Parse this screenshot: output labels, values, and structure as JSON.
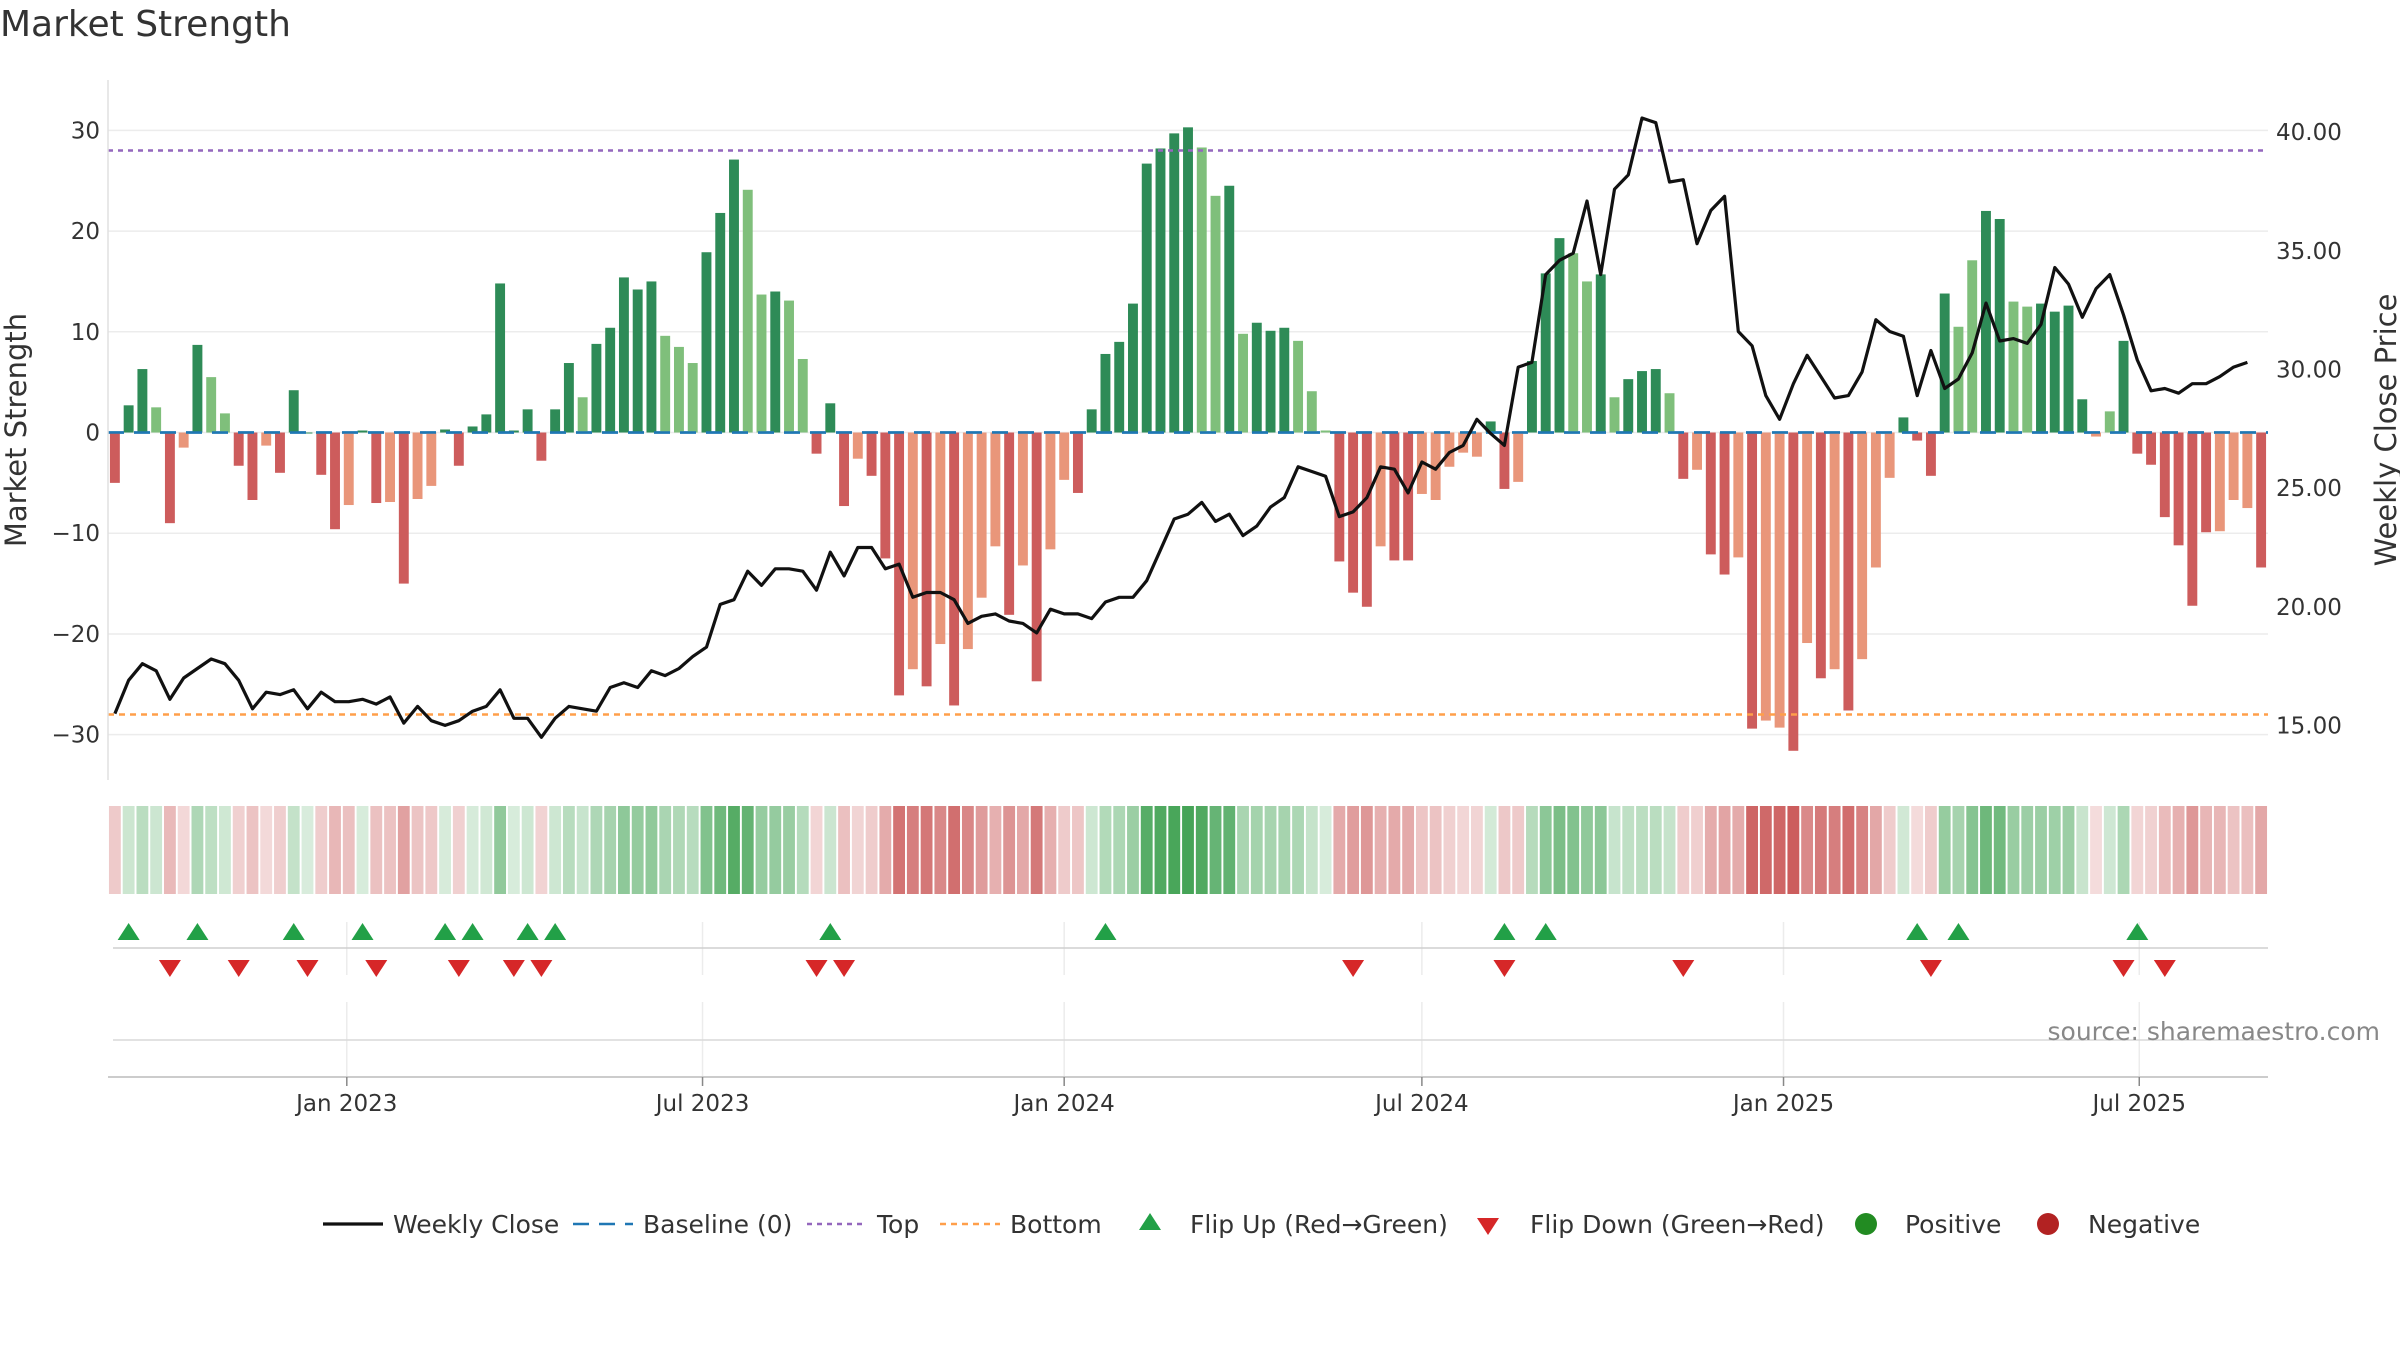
{
  "title": "Market Strength",
  "source": "source: sharemaestro.com",
  "colors": {
    "strong_green": "#2e8b57",
    "light_green": "#7fbf7b",
    "strong_red": "#cd5c5c",
    "light_red": "#e9967a",
    "price_line": "#111111",
    "baseline": "#1f77b4",
    "top": "#9467bd",
    "bottom": "#ff9f4a",
    "flip_up": "#22a047",
    "flip_down": "#d62728",
    "positive": "#228b22",
    "negative": "#b22222"
  },
  "chart_data": {
    "type": "bar+line",
    "start_date": "2022-09-05",
    "interval_days": 7,
    "left_axis": {
      "label": "Market Strength",
      "ylim": [
        -34.5,
        35
      ],
      "ticks": [
        30,
        20,
        10,
        0,
        -10,
        -20,
        -30
      ],
      "tick_labels": [
        "30",
        "20",
        "10",
        "0",
        "−10",
        "−20",
        "−30"
      ]
    },
    "right_axis": {
      "label": "Weekly Close Price",
      "ylim": [
        12.7,
        42.2
      ],
      "ticks": [
        40,
        35,
        30,
        25,
        20,
        15
      ],
      "tick_labels": [
        "40.00",
        "35.00",
        "30.00",
        "25.00",
        "20.00",
        "15.00"
      ]
    },
    "x_axis": {
      "tick_dates": [
        "2023-01-01",
        "2023-07-01",
        "2024-01-01",
        "2024-07-01",
        "2025-01-01",
        "2025-07-01"
      ],
      "tick_labels": [
        "Jan 2023",
        "Jul 2023",
        "Jan 2024",
        "Jul 2024",
        "Jan 2025",
        "Jul 2025"
      ]
    },
    "top_level": 28,
    "bottom_level": -28,
    "baseline": 0,
    "strength": [
      -5,
      2.7,
      6.3,
      2.5,
      -9,
      -1.5,
      8.7,
      5.5,
      1.9,
      -3.3,
      -6.7,
      -1.3,
      -4,
      4.2,
      0,
      -4.2,
      -9.6,
      -7.2,
      0.2,
      -7,
      -6.9,
      -15,
      -6.6,
      -5.3,
      0.3,
      -3.3,
      0.6,
      1.8,
      14.8,
      0.2,
      2.3,
      -2.8,
      2.3,
      6.9,
      3.5,
      8.8,
      10.4,
      15.4,
      14.2,
      15,
      9.6,
      8.5,
      6.9,
      17.9,
      21.8,
      27.1,
      24.1,
      13.7,
      14,
      13.1,
      7.3,
      -2.1,
      2.9,
      -7.3,
      -2.6,
      -4.3,
      -12.5,
      -26.1,
      -23.5,
      -25.2,
      -21,
      -27.1,
      -21.5,
      -16.4,
      -11.3,
      -18.1,
      -13.2,
      -24.7,
      -11.6,
      -4.7,
      -6,
      2.3,
      7.8,
      9,
      12.8,
      26.7,
      28.2,
      29.7,
      30.3,
      28.3,
      23.5,
      24.5,
      9.8,
      10.9,
      10.1,
      10.4,
      9.1,
      4.1,
      0.2,
      -12.8,
      -15.9,
      -17.3,
      -11.3,
      -12.7,
      -12.7,
      -6.1,
      -6.7,
      -3.4,
      -2,
      -2.4,
      1.1,
      -5.6,
      -4.9,
      7.1,
      15.8,
      19.3,
      17.8,
      15,
      15.7,
      3.5,
      5.3,
      6.1,
      6.3,
      3.9,
      -4.6,
      -3.7,
      -12.1,
      -14.1,
      -12.4,
      -29.4,
      -28.6,
      -29.3,
      -31.6,
      -20.9,
      -24.4,
      -23.5,
      -27.6,
      -22.5,
      -13.4,
      -4.5,
      1.5,
      -0.8,
      -4.3,
      13.8,
      10.5,
      17.1,
      22,
      21.2,
      13,
      12.5,
      12.8,
      12,
      12.6,
      3.3,
      -0.4,
      2.1,
      9.1,
      -2.1,
      -3.2,
      -8.4,
      -11.2,
      -17.2,
      -9.9,
      -9.8,
      -6.7,
      -7.5,
      -13.4
    ],
    "tone": [
      1,
      1,
      1,
      0,
      1,
      0,
      1,
      0,
      0,
      1,
      1,
      0,
      1,
      1,
      1,
      1,
      1,
      0,
      1,
      1,
      0,
      1,
      0,
      0,
      1,
      1,
      1,
      1,
      1,
      1,
      1,
      1,
      1,
      1,
      0,
      1,
      1,
      1,
      1,
      1,
      0,
      0,
      0,
      1,
      1,
      1,
      0,
      0,
      1,
      0,
      0,
      1,
      1,
      1,
      0,
      1,
      1,
      1,
      0,
      1,
      0,
      1,
      0,
      0,
      0,
      1,
      0,
      1,
      0,
      0,
      1,
      1,
      1,
      1,
      1,
      1,
      1,
      1,
      1,
      0,
      0,
      1,
      0,
      1,
      1,
      1,
      0,
      0,
      0,
      1,
      1,
      1,
      0,
      1,
      1,
      0,
      0,
      0,
      0,
      0,
      1,
      1,
      0,
      1,
      1,
      1,
      0,
      0,
      1,
      0,
      1,
      1,
      1,
      0,
      1,
      0,
      1,
      1,
      0,
      1,
      0,
      0,
      1,
      0,
      1,
      0,
      1,
      0,
      0,
      0,
      1,
      1,
      1,
      1,
      0,
      0,
      1,
      1,
      0,
      0,
      1,
      1,
      1,
      1,
      0,
      0,
      1,
      1,
      1,
      1,
      1,
      1,
      1,
      0,
      0,
      0,
      1,
      1
    ],
    "close": [
      15.5,
      16.9,
      17.6,
      17.3,
      16.1,
      17,
      17.4,
      17.8,
      17.6,
      16.9,
      15.7,
      16.4,
      16.3,
      16.5,
      15.7,
      16.4,
      16,
      16,
      16.1,
      15.9,
      16.2,
      15.1,
      15.8,
      15.2,
      15,
      15.2,
      15.6,
      15.8,
      16.5,
      15.3,
      15.3,
      14.5,
      15.3,
      15.8,
      15.7,
      15.6,
      16.6,
      16.8,
      16.6,
      17.3,
      17.1,
      17.4,
      17.9,
      18.3,
      20.1,
      20.3,
      21.5,
      20.9,
      21.6,
      21.6,
      21.5,
      20.7,
      22.3,
      21.3,
      22.5,
      22.5,
      21.6,
      21.8,
      20.4,
      20.6,
      20.6,
      20.3,
      19.3,
      19.6,
      19.7,
      19.4,
      19.3,
      18.9,
      19.9,
      19.7,
      19.7,
      19.5,
      20.2,
      20.4,
      20.4,
      21.1,
      22.4,
      23.7,
      23.9,
      24.4,
      23.6,
      23.9,
      23,
      23.4,
      24.2,
      24.6,
      25.9,
      25.7,
      25.5,
      23.8,
      24,
      24.6,
      25.9,
      25.8,
      24.8,
      26.1,
      25.8,
      26.5,
      26.8,
      27.9,
      27.3,
      26.8,
      30.1,
      30.3,
      34,
      34.6,
      34.9,
      37.1,
      34,
      37.6,
      38.2,
      40.6,
      40.4,
      37.9,
      38,
      35.3,
      36.7,
      37.3,
      31.6,
      31,
      28.9,
      27.9,
      29.4,
      30.6,
      29.7,
      28.8,
      28.9,
      29.9,
      32.1,
      31.6,
      31.4,
      28.9,
      30.8,
      29.2,
      29.6,
      30.7,
      32.8,
      31.2,
      31.3,
      31.1,
      31.9,
      34.3,
      33.6,
      32.2,
      33.4,
      34,
      32.3,
      30.4,
      29.1,
      29.2,
      29,
      29.4,
      29.4,
      29.7,
      30.1,
      30.3
    ],
    "flip_up_indices": [
      1,
      6,
      13,
      18,
      24,
      26,
      30,
      32,
      52,
      72,
      101,
      104,
      131,
      134,
      147
    ],
    "flip_down_indices": [
      4,
      9,
      14,
      19,
      25,
      29,
      31,
      51,
      53,
      90,
      101,
      114,
      132,
      146,
      149
    ],
    "legend": [
      "Weekly Close",
      "Baseline (0)",
      "Top",
      "Bottom",
      "Flip Up (Red→Green)",
      "Flip Down (Green→Red)",
      "Positive",
      "Negative"
    ]
  }
}
